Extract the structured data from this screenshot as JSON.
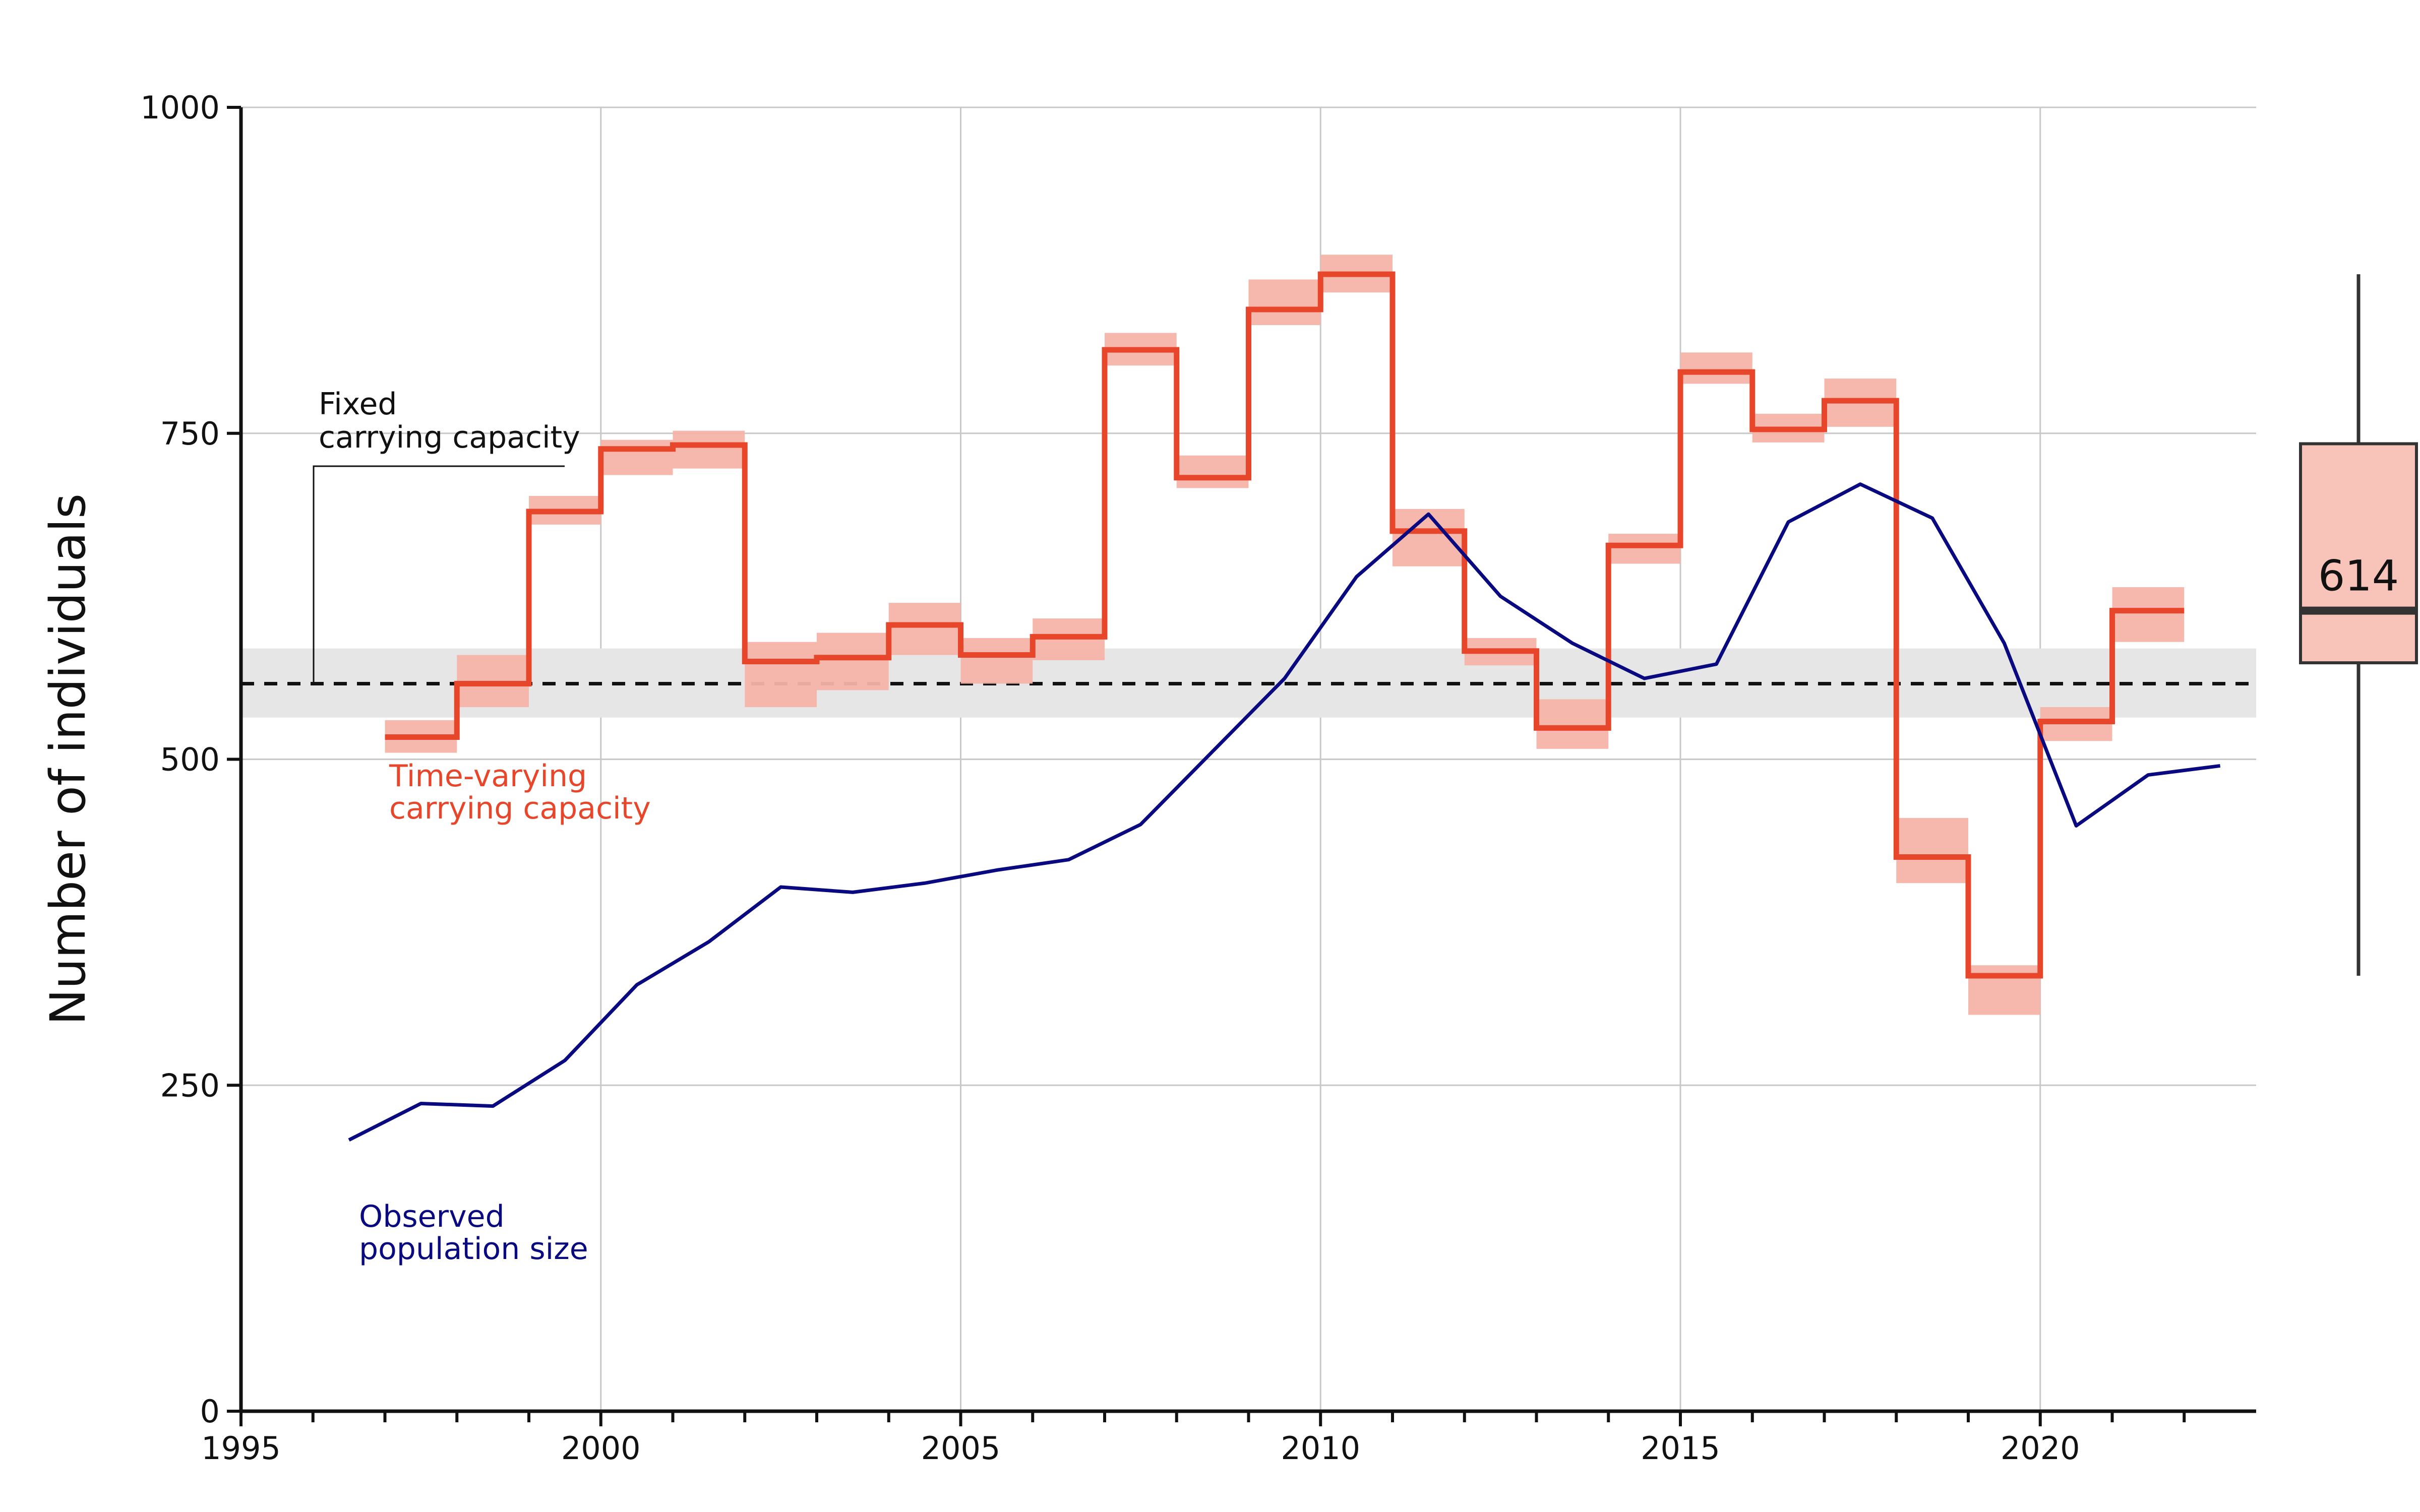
{
  "chart_data": {
    "type": "line",
    "ylabel": "Number of individuals",
    "xlabel": "",
    "xlim": [
      1995,
      2023
    ],
    "ylim": [
      0,
      1000
    ],
    "x_ticks": [
      1995,
      2000,
      2005,
      2010,
      2015,
      2020
    ],
    "x_tick_labels": [
      "1995",
      "2000",
      "2005",
      "2010",
      "2015",
      "2020"
    ],
    "y_ticks": [
      0,
      250,
      500,
      750,
      1000
    ],
    "y_tick_labels": [
      "0",
      "250",
      "500",
      "750",
      "1000"
    ],
    "grid": true,
    "colors": {
      "observed": "#0a0a80",
      "time_varying": "#e8462a",
      "time_varying_band": "#f5b3a8",
      "fixed_line": "#111111",
      "fixed_band": "#e6e6e6",
      "grid": "#c8c8c8"
    },
    "fixed_capacity": {
      "value": 558,
      "band": [
        532,
        585
      ]
    },
    "time_varying_capacity": {
      "years": [
        1997,
        1998,
        1999,
        2000,
        2001,
        2002,
        2003,
        2004,
        2005,
        2006,
        2007,
        2008,
        2009,
        2010,
        2011,
        2012,
        2013,
        2014,
        2015,
        2016,
        2017,
        2018,
        2019,
        2020,
        2021
      ],
      "values": [
        517,
        558,
        690,
        738,
        741,
        575,
        578,
        603,
        580,
        594,
        814,
        716,
        845,
        872,
        675,
        583,
        524,
        664,
        797,
        753,
        775,
        425,
        334,
        529,
        614
      ],
      "lower": [
        505,
        540,
        680,
        718,
        723,
        540,
        553,
        580,
        558,
        576,
        802,
        708,
        833,
        858,
        648,
        572,
        508,
        650,
        788,
        743,
        755,
        405,
        304,
        514,
        590
      ],
      "upper": [
        530,
        580,
        702,
        745,
        752,
        590,
        597,
        620,
        593,
        608,
        827,
        733,
        868,
        887,
        692,
        593,
        546,
        673,
        812,
        765,
        792,
        455,
        342,
        540,
        632
      ]
    },
    "observed_population": {
      "x": [
        1996.5,
        1997.5,
        1998.5,
        1999.5,
        2000.5,
        2001.5,
        2002.5,
        2003.5,
        2004.5,
        2005.5,
        2006.5,
        2007.5,
        2008.5,
        2009.5,
        2010.5,
        2011.5,
        2012.5,
        2013.5,
        2014.5,
        2015.5,
        2016.5,
        2017.5,
        2018.5,
        2019.5,
        2020.5,
        2021.5,
        2022.5
      ],
      "y": [
        208,
        236,
        234,
        269,
        327,
        360,
        402,
        398,
        405,
        415,
        423,
        450,
        506,
        562,
        640,
        688,
        625,
        589,
        562,
        573,
        682,
        711,
        685,
        589,
        449,
        488,
        495
      ]
    },
    "boxplot": {
      "median": 614,
      "median_label": "614",
      "q1": 574,
      "q3": 742,
      "whisker_low": 334,
      "whisker_high": 872,
      "fill": "#f8c4b9"
    },
    "annotations": {
      "fixed_line1": "Fixed",
      "fixed_line2": "carrying capacity",
      "tv_line1": "Time-varying",
      "tv_line2": "carrying capacity",
      "obs_line1": "Observed",
      "obs_line2": "population size"
    }
  }
}
